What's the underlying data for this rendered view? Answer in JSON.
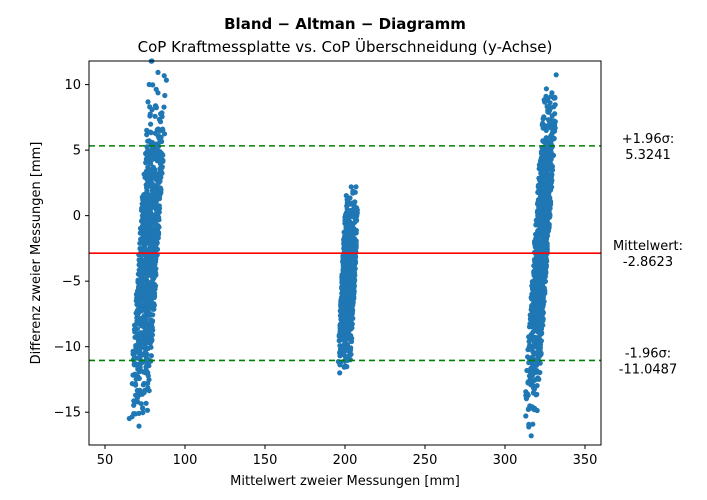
{
  "chart_data": {
    "type": "scatter",
    "title": "Bland − Altman − Diagramm",
    "subtitle": "CoP Kraftmessplatte vs. CoP Überschneidung (y-Achse)",
    "xlabel": "Mittelwert zweier Messungen [mm]",
    "ylabel": "Differenz zweier Messungen [mm]",
    "xlim": [
      40,
      360
    ],
    "ylim": [
      -17.5,
      11.8
    ],
    "xticks": [
      50,
      100,
      150,
      200,
      250,
      300,
      350
    ],
    "yticks": [
      -15,
      -10,
      -5,
      0,
      5,
      10
    ],
    "xtick_labels": [
      "50",
      "100",
      "150",
      "200",
      "250",
      "300",
      "350"
    ],
    "ytick_labels": [
      "−15",
      "−10",
      "−5",
      "0",
      "5",
      "10"
    ],
    "grid": false,
    "point_color": "#1f77b4",
    "clusters": [
      {
        "x_range": [
          64,
          90
        ],
        "y_range": [
          -17.5,
          11.8
        ],
        "slope": 1.0
      },
      {
        "x_range": [
          193,
          211
        ],
        "y_range": [
          -12,
          2.2
        ],
        "slope": 0.55
      },
      {
        "x_range": [
          313,
          332
        ],
        "y_range": [
          -16.8,
          11.8
        ],
        "slope": 1.4
      }
    ],
    "reference_lines": [
      {
        "kind": "mean",
        "value": -2.8623,
        "color": "#ff0000",
        "style": "solid",
        "label_top": "Mittelwert:",
        "label_value": "-2.8623"
      },
      {
        "kind": "upper_loa",
        "value": 5.3241,
        "color": "#008000",
        "style": "dashed",
        "label_top": "+1.96σ:",
        "label_value": "5.3241"
      },
      {
        "kind": "lower_loa",
        "value": -11.0487,
        "color": "#008000",
        "style": "dashed",
        "label_top": "-1.96σ:",
        "label_value": "-11.0487"
      }
    ]
  }
}
